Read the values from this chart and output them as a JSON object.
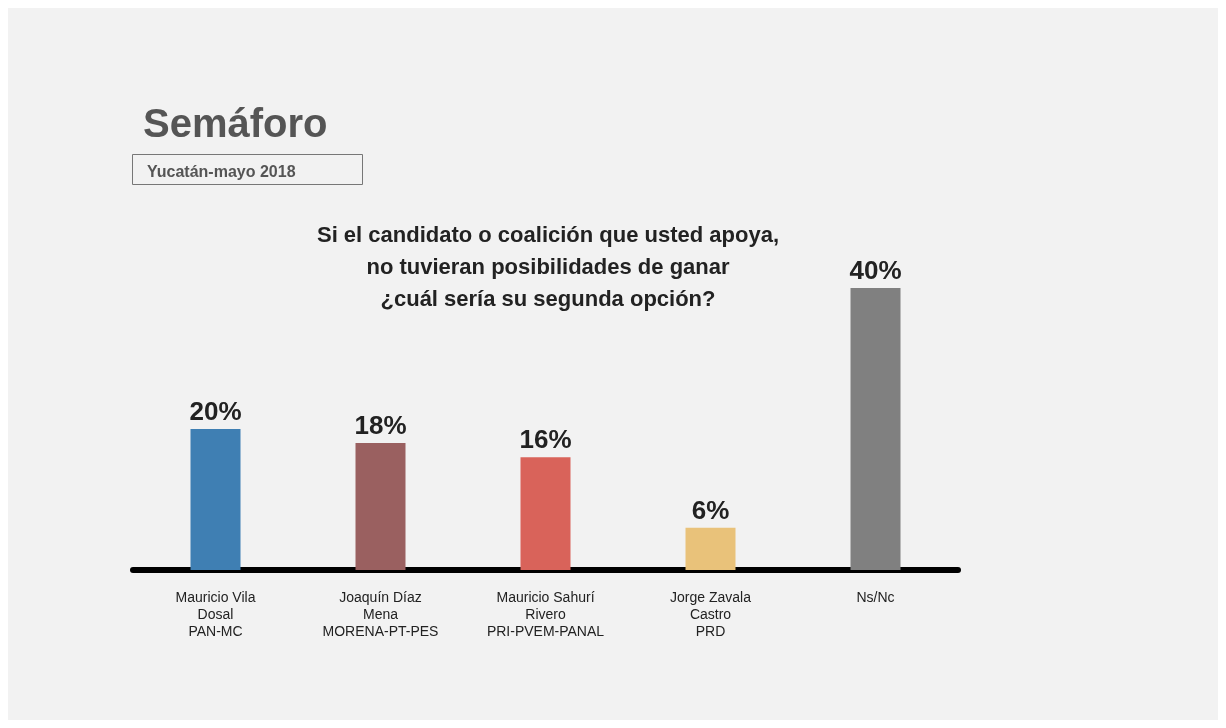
{
  "chart_data": {
    "type": "bar",
    "title": "Semáforo",
    "subtitle": "Yucatán-mayo 2018",
    "annotations": [
      "Si el candidato o coalición que usted apoya,\nno tuvieran posibilidades de ganar\n¿cuál sería su segunda opción?"
    ],
    "categories": [
      "Mauricio Vila\nDosal\nPAN-MC",
      "Joaquín Díaz\nMena\nMORENA-PT-PES",
      "Mauricio Sahurí\nRivero\nPRI-PVEM-PANAL",
      "Jorge Zavala\nCastro\nPRD",
      "Ns/Nc"
    ],
    "values": [
      20,
      18,
      16,
      6,
      40
    ],
    "value_labels": [
      "20%",
      "18%",
      "16%",
      "6%",
      "40%"
    ],
    "colors": [
      "#3f7fb3",
      "#9a6060",
      "#d9635a",
      "#e9c27a",
      "#808080"
    ],
    "grid": false
  }
}
